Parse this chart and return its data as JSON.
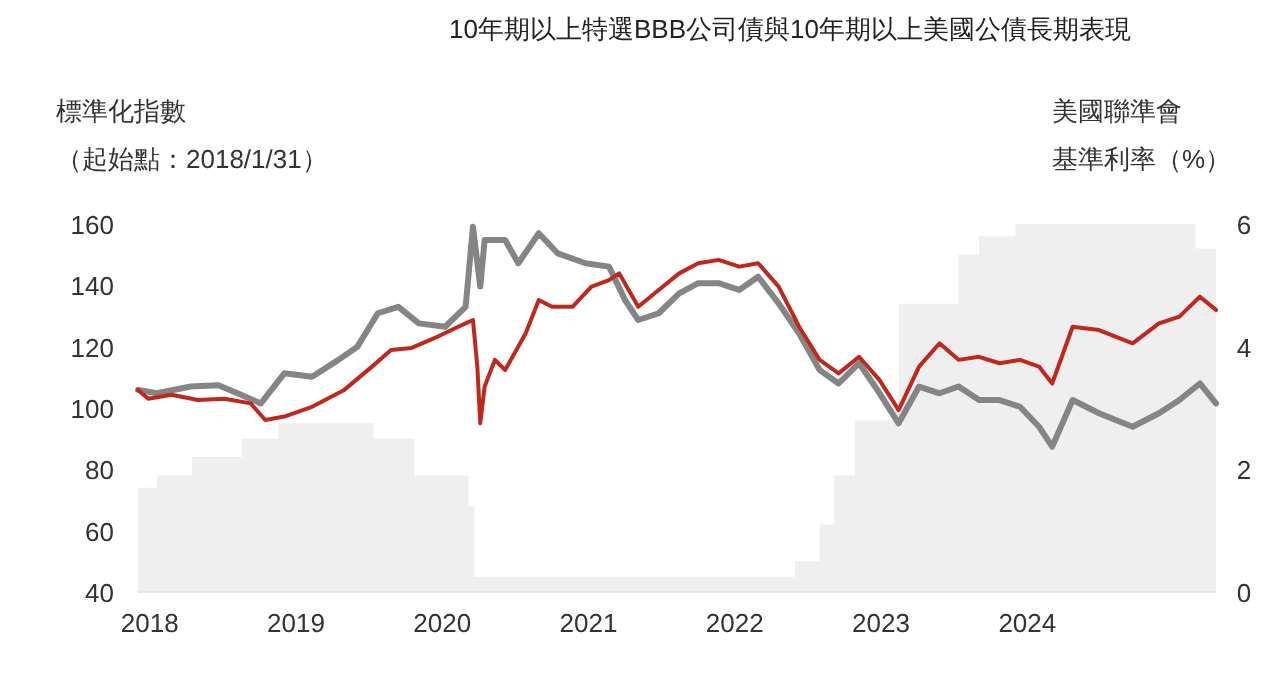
{
  "chart_data": {
    "type": "line",
    "title": "10年期以上特選BBB公司債與10年期以上美國公債長期表現",
    "ylabel": "標準化指數",
    "y2label": "美國聯準會",
    "annotations": [
      "（起始點：2018/1/31）",
      "基準利率（%）"
    ],
    "xlim": [
      2017.92,
      2025.29
    ],
    "xticks": [
      2018,
      2019,
      2020,
      2021,
      2022,
      2023,
      2024
    ],
    "ylim": [
      40,
      160
    ],
    "yticks": [
      40,
      60,
      80,
      100,
      120,
      140,
      160
    ],
    "y2lim": [
      0,
      6
    ],
    "y2ticks": [
      0,
      2,
      4,
      6
    ],
    "grid": false,
    "series": [
      {
        "type": "area",
        "axis": "y2",
        "color": "#efefef",
        "x": [
          2017.92,
          2018.05,
          2018.05,
          2018.29,
          2018.29,
          2018.63,
          2018.63,
          2018.88,
          2018.88,
          2019.53,
          2019.53,
          2019.81,
          2019.81,
          2020.18,
          2020.18,
          2020.22,
          2020.22,
          2022.41,
          2022.41,
          2022.58,
          2022.58,
          2022.68,
          2022.68,
          2022.82,
          2022.82,
          2023.12,
          2023.12,
          2023.53,
          2023.53,
          2023.67,
          2023.67,
          2023.92,
          2023.92,
          2025.15,
          2025.15,
          2025.29
        ],
        "values": [
          1.7,
          1.7,
          1.9,
          1.9,
          2.2,
          2.2,
          2.5,
          2.5,
          2.75,
          2.75,
          2.5,
          2.5,
          1.9,
          1.9,
          1.4,
          1.4,
          0.25,
          0.25,
          0.5,
          0.5,
          1.1,
          1.1,
          1.9,
          1.9,
          2.8,
          2.8,
          4.7,
          4.7,
          5.5,
          5.5,
          5.8,
          5.8,
          6,
          6,
          5.6,
          5.6
        ]
      },
      {
        "color": "#858585",
        "x": [
          2017.92,
          2018.05,
          2018.28,
          2018.47,
          2018.6,
          2018.76,
          2018.92,
          2019.11,
          2019.29,
          2019.42,
          2019.56,
          2019.7,
          2019.84,
          2020.02,
          2020.16,
          2020.21,
          2020.26,
          2020.29,
          2020.43,
          2020.52,
          2020.66,
          2020.79,
          2020.98,
          2021.14,
          2021.25,
          2021.34,
          2021.48,
          2021.62,
          2021.75,
          2021.89,
          2022.03,
          2022.16,
          2022.3,
          2022.44,
          2022.58,
          2022.71,
          2022.85,
          2022.99,
          2023.12,
          2023.26,
          2023.4,
          2023.53,
          2023.67,
          2023.81,
          2023.95,
          2024.08,
          2024.17,
          2024.31,
          2024.49,
          2024.72,
          2024.9,
          2025.04,
          2025.18,
          2025.29
        ],
        "values": [
          105.9,
          104.8,
          107,
          107.4,
          104.8,
          101.5,
          111.3,
          110.2,
          115.7,
          120,
          130.9,
          133,
          127.6,
          126.5,
          133,
          159.1,
          139.6,
          154.8,
          154.8,
          147.2,
          157,
          150.4,
          147.2,
          146.1,
          135.2,
          128.7,
          130.9,
          137.4,
          140.7,
          140.7,
          138.5,
          142.8,
          134.1,
          124.3,
          112.4,
          108,
          114.6,
          104.8,
          95,
          107,
          104.8,
          107,
          102.6,
          102.6,
          100.4,
          93.9,
          87.4,
          102.6,
          98.3,
          93.9,
          98.3,
          102.6,
          108,
          101.5
        ]
      },
      {
        "color": "#c0281e",
        "x": [
          2017.92,
          2017.99,
          2018.15,
          2018.33,
          2018.51,
          2018.69,
          2018.79,
          2018.92,
          2019.11,
          2019.33,
          2019.52,
          2019.65,
          2019.79,
          2019.97,
          2020.11,
          2020.16,
          2020.21,
          2020.24,
          2020.26,
          2020.29,
          2020.36,
          2020.43,
          2020.57,
          2020.66,
          2020.75,
          2020.89,
          2021.02,
          2021.14,
          2021.21,
          2021.34,
          2021.48,
          2021.62,
          2021.75,
          2021.89,
          2022.03,
          2022.16,
          2022.3,
          2022.44,
          2022.58,
          2022.71,
          2022.85,
          2022.99,
          2023.12,
          2023.26,
          2023.4,
          2023.53,
          2023.67,
          2023.81,
          2023.95,
          2024.08,
          2024.17,
          2024.31,
          2024.49,
          2024.72,
          2024.9,
          2025.04,
          2025.18,
          2025.29
        ],
        "values": [
          105.9,
          103,
          104.3,
          102.6,
          103,
          101.5,
          96.1,
          97.2,
          100.4,
          105.9,
          113.5,
          118.9,
          119.6,
          123.3,
          126.5,
          127.6,
          128.7,
          113.5,
          95,
          107,
          115.7,
          112.4,
          124.3,
          135.2,
          133,
          133,
          139.6,
          141.7,
          143.9,
          133,
          138.5,
          143.9,
          147.2,
          148.3,
          146.1,
          147.2,
          139.6,
          126.5,
          115.7,
          111.3,
          116.7,
          109.1,
          99.3,
          113.5,
          121.1,
          115.7,
          116.7,
          114.6,
          115.7,
          113.5,
          108,
          126.5,
          125.4,
          121.1,
          127.6,
          129.8,
          136.3,
          132
        ]
      }
    ]
  }
}
